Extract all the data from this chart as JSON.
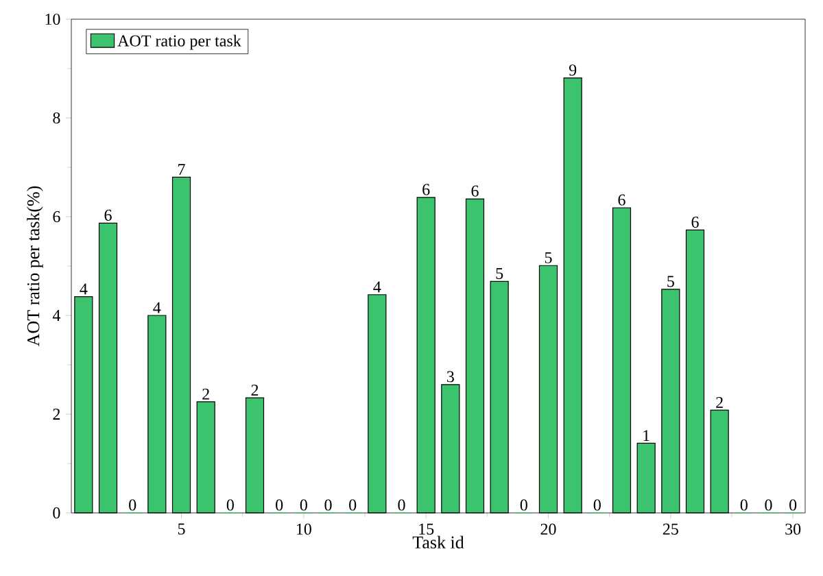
{
  "chart_data": {
    "type": "bar",
    "xlabel": "Task id",
    "ylabel": "AOT ratio per task(%)",
    "x": [
      1,
      2,
      3,
      4,
      5,
      6,
      7,
      8,
      9,
      10,
      11,
      12,
      13,
      14,
      15,
      16,
      17,
      18,
      19,
      20,
      21,
      22,
      23,
      24,
      25,
      26,
      27,
      28,
      29,
      30
    ],
    "series": [
      {
        "name": "AOT ratio per task",
        "color": "#3cc36e",
        "values": [
          4.38,
          5.87,
          0,
          4.0,
          6.8,
          2.25,
          0,
          2.33,
          0,
          0,
          0,
          0,
          4.42,
          0,
          6.39,
          2.6,
          6.36,
          4.69,
          0,
          5.01,
          8.81,
          0,
          6.18,
          1.41,
          4.53,
          5.73,
          2.08,
          0,
          0,
          0
        ],
        "value_labels": [
          "4",
          "6",
          "0",
          "4",
          "7",
          "2",
          "0",
          "2",
          "0",
          "0",
          "0",
          "0",
          "4",
          "0",
          "6",
          "3",
          "6",
          "5",
          "0",
          "5",
          "9",
          "0",
          "6",
          "1",
          "5",
          "6",
          "2",
          "0",
          "0",
          "0"
        ]
      }
    ],
    "xlim": [
      0.5,
      30.5
    ],
    "xticks": [
      5,
      10,
      15,
      20,
      25,
      30
    ],
    "ylim": [
      0,
      10
    ],
    "yticks": [
      0,
      2,
      4,
      6,
      8,
      10
    ],
    "legend": "top left"
  }
}
